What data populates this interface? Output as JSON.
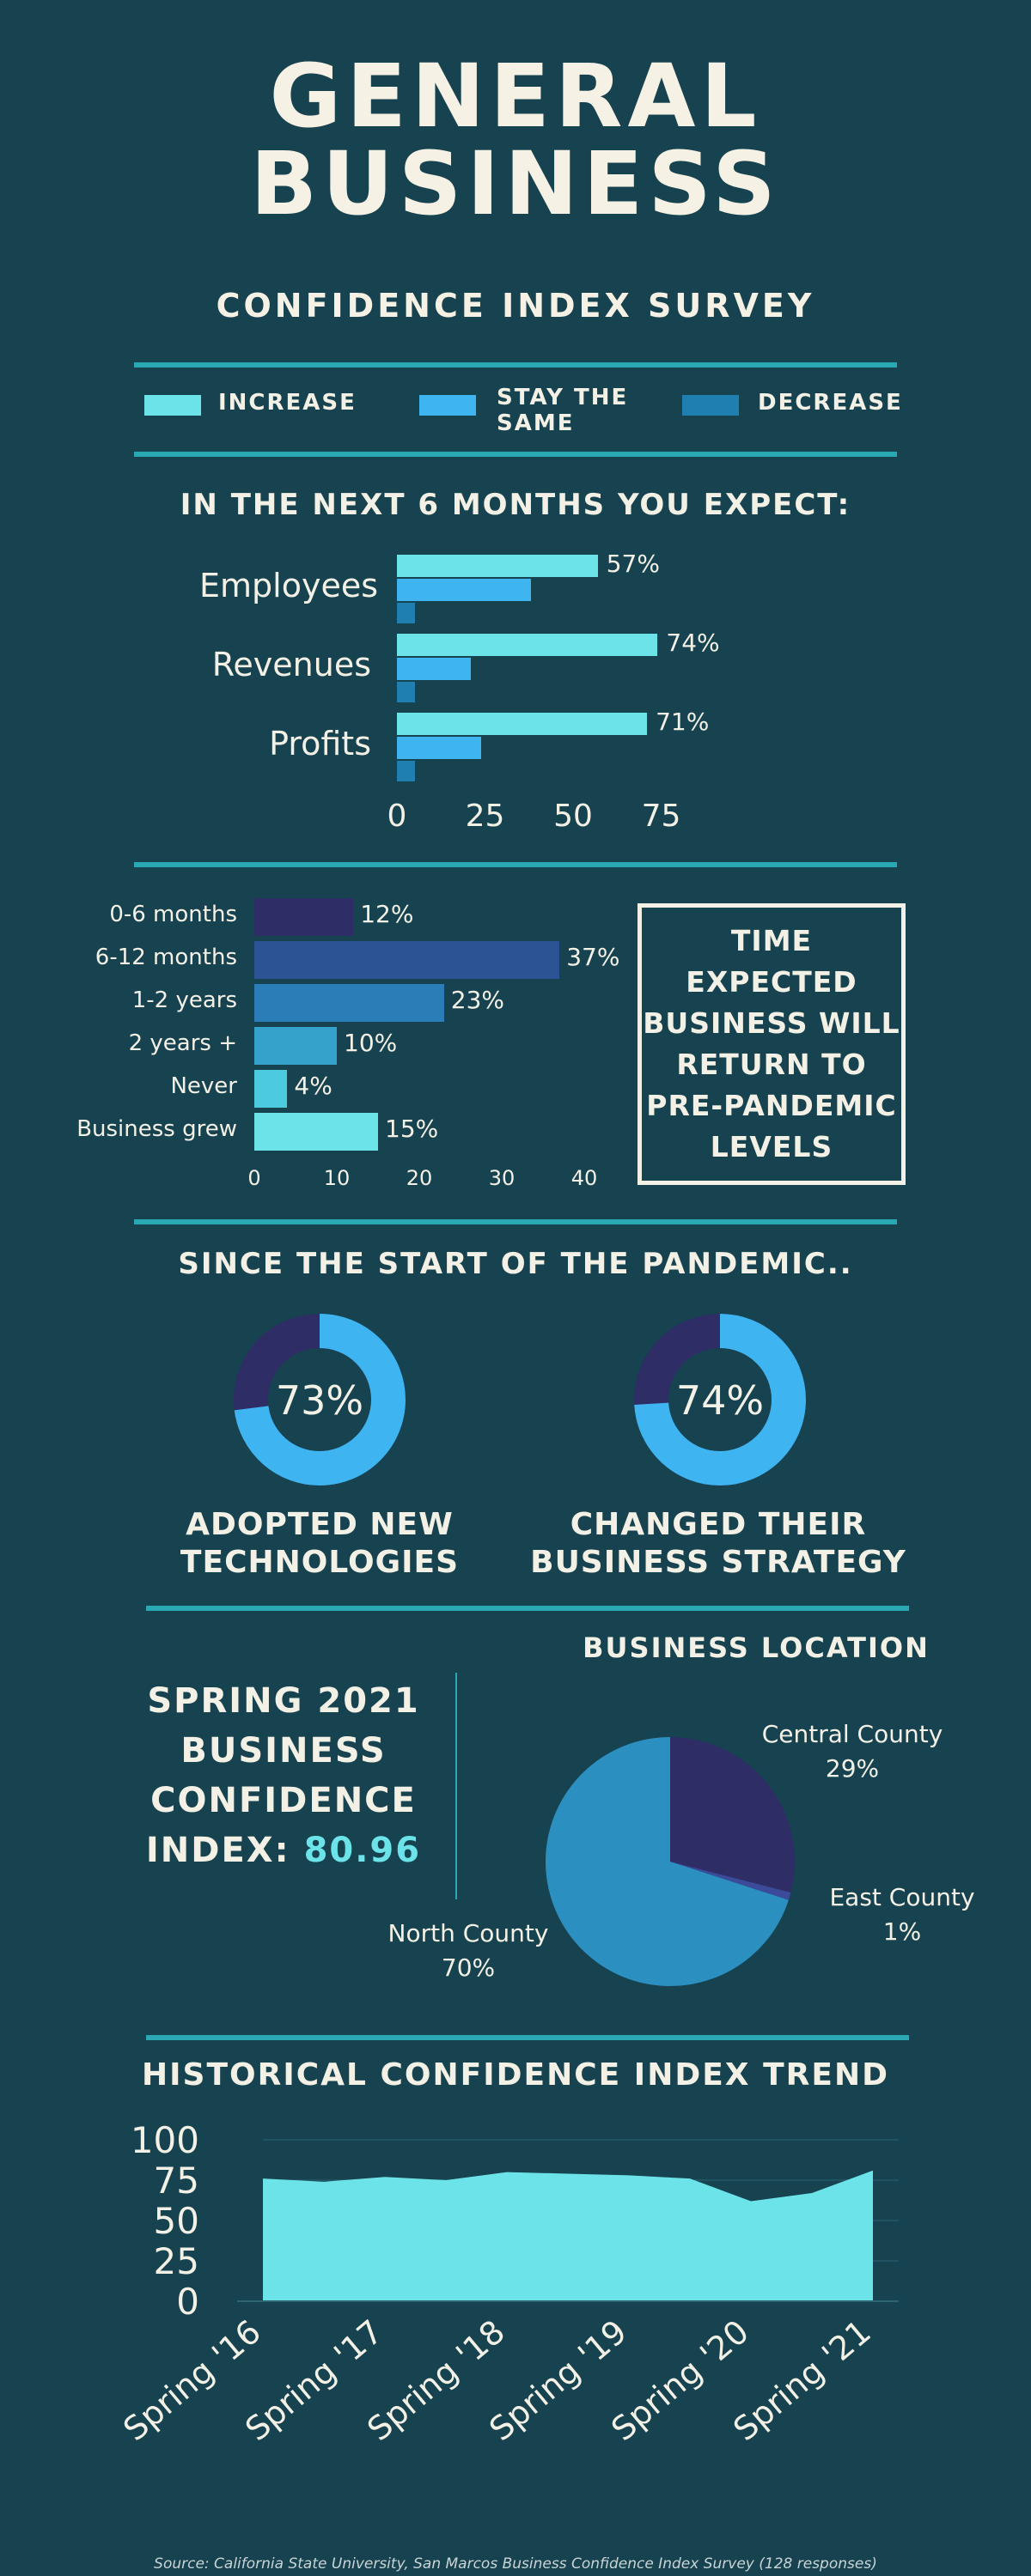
{
  "header": {
    "title_line1": "GENERAL",
    "title_line2": "BUSINESS",
    "subtitle": "CONFIDENCE INDEX SURVEY"
  },
  "colors": {
    "background": "#17424f",
    "increase": "#6ce3e8",
    "stay_same": "#3eb5f1",
    "decrease": "#1e7fb0",
    "rule": "#2aa8b3",
    "time_bars": [
      "#2e2d66",
      "#2c5494",
      "#2b7db7",
      "#35a2cc",
      "#4ccbe0",
      "#6ce3e8"
    ],
    "donut_main": "#3eb5f1",
    "donut_rest": "#2e2d66",
    "pie": [
      "#2e2d66",
      "#2b8fbf",
      "#3c4a9a"
    ],
    "area": "#6ce3e8"
  },
  "legend": {
    "increase": "INCREASE",
    "stay_same": "STAY THE SAME",
    "decrease": "DECREASE"
  },
  "sections": {
    "expect_title": "IN THE NEXT 6 MONTHS YOU EXPECT:",
    "time_box": "TIME EXPECTED BUSINESS WILL RETURN TO PRE-PANDEMIC LEVELS",
    "pandemic_title": "SINCE THE START OF THE PANDEMIC..",
    "location_title": "BUSINESS LOCATION",
    "trend_title": "HISTORICAL CONFIDENCE INDEX TREND"
  },
  "cci": {
    "line1": "SPRING 2021",
    "line2": "BUSINESS",
    "line3": "CONFIDENCE",
    "line4": "INDEX:",
    "value": "80.96"
  },
  "donuts": [
    {
      "value": 73,
      "label": "73%",
      "caption1": "ADOPTED NEW",
      "caption2": "TECHNOLOGIES"
    },
    {
      "value": 74,
      "label": "74%",
      "caption1": "CHANGED THEIR",
      "caption2": "BUSINESS STRATEGY"
    }
  ],
  "source": "Source: California State University, San Marcos Business Confidence Index Survey (128 responses)",
  "chart_data": [
    {
      "type": "bar",
      "orientation": "horizontal",
      "title": "IN THE NEXT 6 MONTHS YOU EXPECT:",
      "categories": [
        "Employees",
        "Revenues",
        "Profits"
      ],
      "series": [
        {
          "name": "INCREASE",
          "values": [
            57,
            74,
            71
          ]
        },
        {
          "name": "STAY THE SAME",
          "values": [
            38,
            21,
            24
          ]
        },
        {
          "name": "DECREASE",
          "values": [
            5,
            5,
            5
          ]
        }
      ],
      "data_labels": [
        "57%",
        "74%",
        "71%"
      ],
      "xlim": [
        0,
        80
      ],
      "xticks": [
        "0",
        "25",
        "50",
        "75"
      ],
      "legend": "top"
    },
    {
      "type": "bar",
      "orientation": "horizontal",
      "title": "TIME EXPECTED BUSINESS WILL RETURN TO PRE-PANDEMIC LEVELS",
      "categories": [
        "0-6 months",
        "6-12 months",
        "1-2 years",
        "2 years +",
        "Never",
        "Business grew"
      ],
      "values": [
        12,
        37,
        23,
        10,
        4,
        15
      ],
      "data_labels": [
        "12%",
        "37%",
        "23%",
        "10%",
        "4%",
        "15%"
      ],
      "xlim": [
        0,
        40
      ],
      "xticks": [
        "0",
        "10",
        "20",
        "30",
        "40"
      ]
    },
    {
      "type": "pie",
      "title": "BUSINESS LOCATION",
      "categories": [
        "Central County",
        "East County",
        "North County"
      ],
      "values": [
        29,
        1,
        70
      ],
      "data_labels": [
        "29%",
        "1%",
        "70%"
      ]
    },
    {
      "type": "area",
      "title": "HISTORICAL CONFIDENCE INDEX TREND",
      "x": [
        "Spring '16",
        "Fall '16",
        "Spring '17",
        "Fall '17",
        "Spring '18",
        "Fall '18",
        "Spring '19",
        "Fall '19",
        "Spring '20",
        "Fall '20",
        "Spring '21"
      ],
      "values": [
        76,
        74,
        77,
        75,
        80,
        79,
        78,
        76,
        62,
        67,
        81
      ],
      "xticks": [
        "Spring '16",
        "Spring '17",
        "Spring '18",
        "Spring '19",
        "Spring '20",
        "Spring '21"
      ],
      "ylim": [
        0,
        100
      ],
      "yticks": [
        "100",
        "75",
        "50",
        "25",
        "0"
      ]
    }
  ]
}
